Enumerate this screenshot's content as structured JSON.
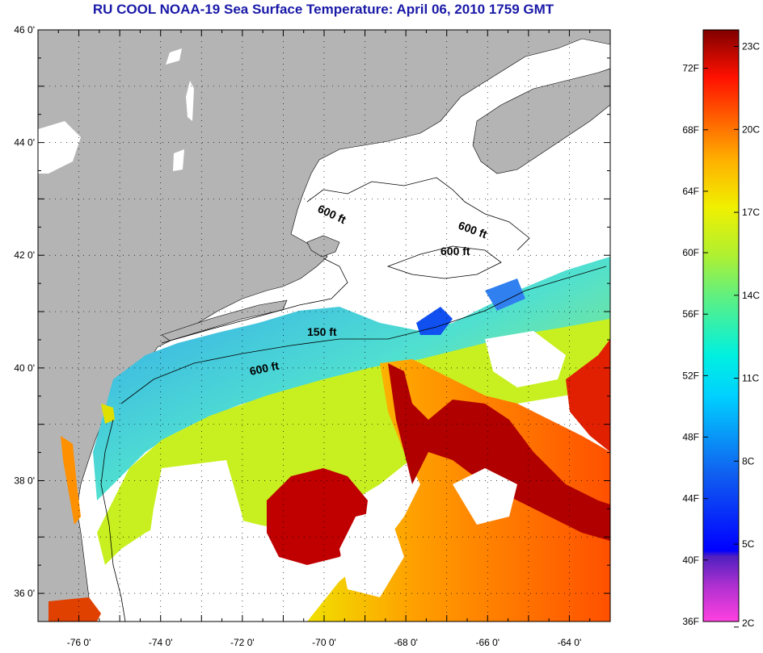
{
  "title": "RU COOL  NOAA-19  Sea Surface Temperature:  April 06, 2010 1759 GMT",
  "axes": {
    "lat_labels": [
      "46 0'",
      "44 0'",
      "42 0'",
      "40 0'",
      "38 0'",
      "36 0'"
    ],
    "lon_labels": [
      "-76 0'",
      "-74 0'",
      "-72 0'",
      "-70 0'",
      "-68 0'",
      "-66 0'",
      "-64 0'"
    ]
  },
  "contours": {
    "labels": [
      "600 ft",
      "600 ft",
      "600 ft",
      "150 ft",
      "600 ft"
    ]
  },
  "colorbar": {
    "fahrenheit_labels": [
      "72F",
      "68F",
      "64F",
      "60F",
      "56F",
      "52F",
      "48F",
      "44F",
      "40F",
      "36F"
    ],
    "celsius_labels": [
      "23C",
      "20C",
      "17C",
      "14C",
      "11C",
      "8C",
      "5C",
      "2C"
    ]
  },
  "colors": {
    "land": "#b4b4b4",
    "cloud": "#ffffff",
    "title": "#1a1aa8",
    "scale": [
      "#ff40e0",
      "#8030c0",
      "#0000ff",
      "#1060f0",
      "#00b0ff",
      "#00f0e0",
      "#40f0a0",
      "#a0f040",
      "#f0f000",
      "#ffc000",
      "#ff8000",
      "#ff3000",
      "#e00000",
      "#900000"
    ]
  }
}
